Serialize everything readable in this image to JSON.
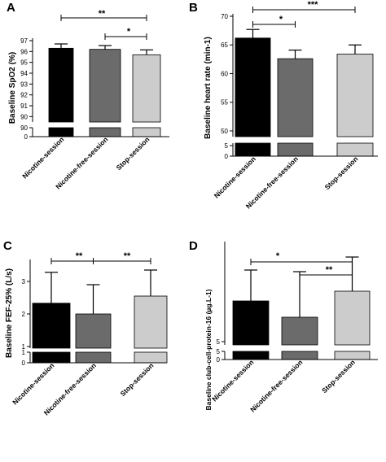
{
  "chart_data": [
    {
      "panel": "A",
      "type": "bar",
      "ylabel": "Baseline SpO2 (%)",
      "categories": [
        "Nicotine-session",
        "Nicotine-free-session",
        "Stop-session"
      ],
      "values": [
        96.3,
        96.2,
        95.7
      ],
      "error": [
        0.4,
        0.35,
        0.45
      ],
      "colors": [
        "#000000",
        "#6b6b6b",
        "#cccccc"
      ],
      "ylim_upper": [
        89.5,
        97
      ],
      "ticks_upper": [
        "97",
        "96",
        "95",
        "94",
        "93",
        "92",
        "91",
        "90"
      ],
      "ticks_lower": [
        "90",
        "0"
      ],
      "significance": [
        {
          "from": 0,
          "to": 2,
          "label": "**"
        },
        {
          "from": 1,
          "to": 2,
          "label": "*"
        }
      ]
    },
    {
      "panel": "B",
      "type": "bar",
      "ylabel": "Baseline heart rate (min-1)",
      "categories": [
        "Nicotine-session",
        "Nicotine-free-session",
        "Stop-session"
      ],
      "values": [
        66.2,
        62.6,
        63.4
      ],
      "error": [
        1.5,
        1.5,
        1.6
      ],
      "colors": [
        "#000000",
        "#6b6b6b",
        "#cccccc"
      ],
      "ylim_upper": [
        49,
        70
      ],
      "ticks_upper": [
        "70",
        "65",
        "60",
        "55",
        "50"
      ],
      "ticks_lower": [
        "5",
        "0"
      ],
      "significance": [
        {
          "from": 0,
          "to": 1,
          "label": "*"
        },
        {
          "from": 0,
          "to": 2,
          "label": "***"
        }
      ]
    },
    {
      "panel": "C",
      "type": "bar",
      "ylabel": "Baseline FEF-25% (L/s)",
      "categories": [
        "Nicotine-session",
        "Nicotine-free-session",
        "Stop-session"
      ],
      "values": [
        2.33,
        2.0,
        2.55
      ],
      "error": [
        0.95,
        0.9,
        0.8
      ],
      "colors": [
        "#000000",
        "#6b6b6b",
        "#cccccc"
      ],
      "ylim_upper": [
        0.95,
        3.6
      ],
      "ticks_upper": [
        "3",
        "2",
        "1"
      ],
      "ticks_lower": [
        "1",
        "0"
      ],
      "significance": [
        {
          "from": 0,
          "to": 1,
          "label": "**"
        },
        {
          "from": 1,
          "to": 2,
          "label": "**"
        }
      ]
    },
    {
      "panel": "D",
      "type": "bar",
      "ylabel": "Baseline club-cell-protein-16 (µg.L-1)",
      "categories": [
        "Nicotine-session",
        "Nicotine-free-session",
        "Stop-session"
      ],
      "values": [
        7.5,
        6.5,
        8.1
      ],
      "error": [
        1.9,
        2.8,
        2.1
      ],
      "colors": [
        "#000000",
        "#6b6b6b",
        "#cccccc"
      ],
      "ylim_upper": [
        4.8,
        11
      ],
      "ticks_upper": [
        "5"
      ],
      "ticks_lower": [
        "5",
        "0"
      ],
      "significance": [
        {
          "from": 0,
          "to": 2,
          "label": "*"
        },
        {
          "from": 1,
          "to": 2,
          "label": "**"
        }
      ]
    }
  ]
}
